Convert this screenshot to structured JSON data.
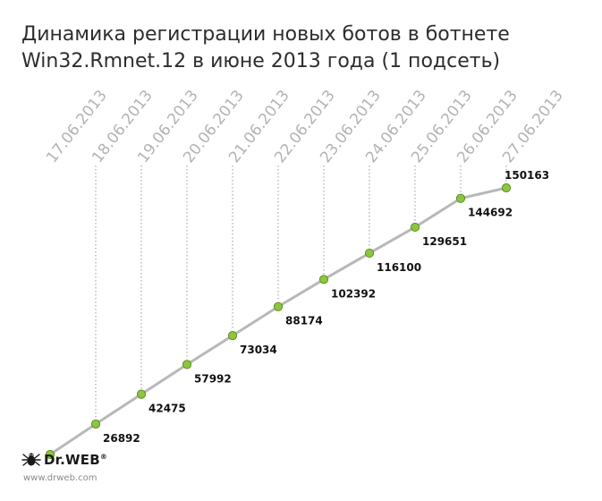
{
  "title_lines": [
    "Динамика регистрации новых ботов в ботнете",
    "Win32.Rmnet.12 в июне 2013 года (1 подсеть)"
  ],
  "colors": {
    "line": "#b8b8b8",
    "marker_fill": "#8cc63f",
    "marker_stroke": "#5f8f1e",
    "guide": "#9a9a9a",
    "date_label": "#b3b3b3",
    "value_label": "#111111",
    "title": "#2d2d2d"
  },
  "chart_data": {
    "type": "line",
    "title": "Динамика регистрации новых ботов в ботнете Win32.Rmnet.12 в июне 2013 года (1 подсеть)",
    "categories": [
      "17.06.2013",
      "18.06.2013",
      "19.06.2013",
      "20.06.2013",
      "21.06.2013",
      "22.06.2013",
      "23.06.2013",
      "24.06.2013",
      "25.06.2013",
      "26.06.2013",
      "27.06.2013"
    ],
    "series": [
      {
        "values": [
          11000,
          26892,
          42475,
          57992,
          73034,
          88174,
          102392,
          116100,
          129651,
          144692,
          150163
        ]
      }
    ],
    "value_labels": [
      "",
      "26892",
      "42475",
      "57992",
      "73034",
      "88174",
      "102392",
      "116100",
      "129651",
      "144692",
      "150163"
    ],
    "xlabel": "",
    "ylabel": "",
    "ylim": [
      11000,
      150163
    ],
    "grid": false,
    "axes_visible": false
  },
  "brand": {
    "name": "Dr.WEB",
    "registered_mark": "®",
    "url": "www.drweb.com",
    "logo_icon": "spider-icon"
  }
}
